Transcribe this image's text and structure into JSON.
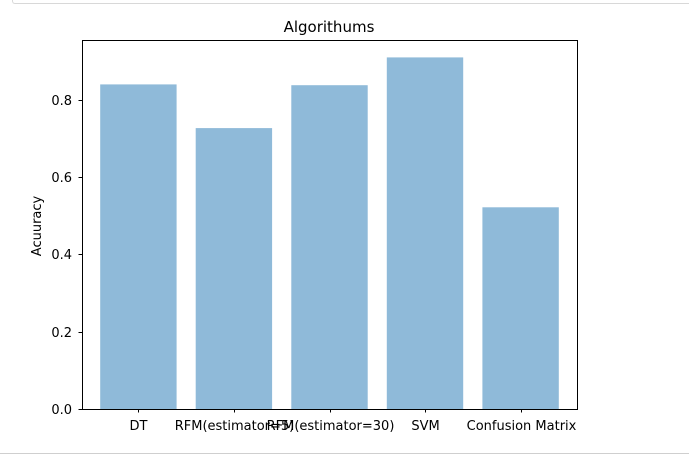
{
  "chart_data": {
    "type": "bar",
    "title": "Algorithums",
    "xlabel": "",
    "ylabel": "Acuuracy",
    "categories": [
      "DT",
      "RFM(estimator=5)",
      "RFM(estimator=30)",
      "SVM",
      "Confusion Matrix"
    ],
    "values": [
      0.84,
      0.727,
      0.838,
      0.91,
      0.522
    ],
    "ylim": [
      0,
      0.955
    ],
    "yticks": [
      0.0,
      0.2,
      0.4,
      0.6,
      0.8
    ],
    "ytick_labels": [
      "0.0",
      "0.2",
      "0.4",
      "0.6",
      "0.8"
    ],
    "bar_color": "#8fbad9",
    "grid": false,
    "legend": "none"
  }
}
